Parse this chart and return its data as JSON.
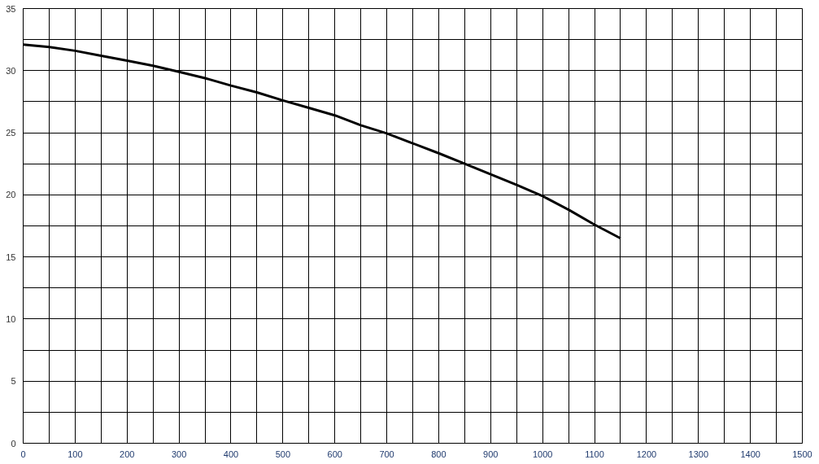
{
  "chart_data": {
    "type": "line",
    "x": [
      0,
      50,
      100,
      150,
      200,
      250,
      300,
      350,
      400,
      450,
      500,
      550,
      600,
      650,
      700,
      750,
      800,
      850,
      900,
      950,
      1000,
      1050,
      1100,
      1150
    ],
    "series": [
      {
        "color": "#000000",
        "values": [
          32.1,
          31.9,
          31.6,
          31.2,
          30.8,
          30.4,
          29.9,
          29.4,
          28.8,
          28.25,
          27.6,
          27.0,
          26.4,
          25.6,
          24.95,
          24.15,
          23.35,
          22.5,
          21.65,
          20.8,
          19.9,
          18.8,
          17.6,
          16.5
        ]
      }
    ],
    "xlim": [
      0,
      1500
    ],
    "ylim": [
      0,
      35
    ],
    "xticks": [
      0,
      {
        "value": 50,
        "label": null
      },
      100,
      {
        "value": 150,
        "label": null
      },
      200,
      {
        "value": 250,
        "label": null
      },
      300,
      {
        "value": 350,
        "label": null
      },
      400,
      {
        "value": 450,
        "label": null
      },
      500,
      {
        "value": 550,
        "label": null
      },
      600,
      {
        "value": 650,
        "label": null
      },
      700,
      {
        "value": 750,
        "label": null
      },
      800,
      {
        "value": 850,
        "label": null
      },
      900,
      {
        "value": 950,
        "label": null
      },
      1000,
      {
        "value": 1050,
        "label": null
      },
      1100,
      {
        "value": 1150,
        "label": null
      },
      1200,
      {
        "value": 1250,
        "label": null
      },
      1300,
      {
        "value": 1350,
        "label": null
      },
      1400,
      {
        "value": 1450,
        "label": null
      },
      1500
    ],
    "yticks": [
      0,
      {
        "value": 2.5,
        "label": null
      },
      5,
      {
        "value": 7.5,
        "label": null
      },
      10,
      {
        "value": 12.5,
        "label": null
      },
      15,
      {
        "value": 17.5,
        "label": null
      },
      20,
      {
        "value": 22.5,
        "label": null
      },
      25,
      {
        "value": 27.5,
        "label": null
      },
      30,
      {
        "value": 32.5,
        "label": null
      },
      35
    ],
    "grid": true,
    "marker": "none",
    "line_style": "solid"
  }
}
